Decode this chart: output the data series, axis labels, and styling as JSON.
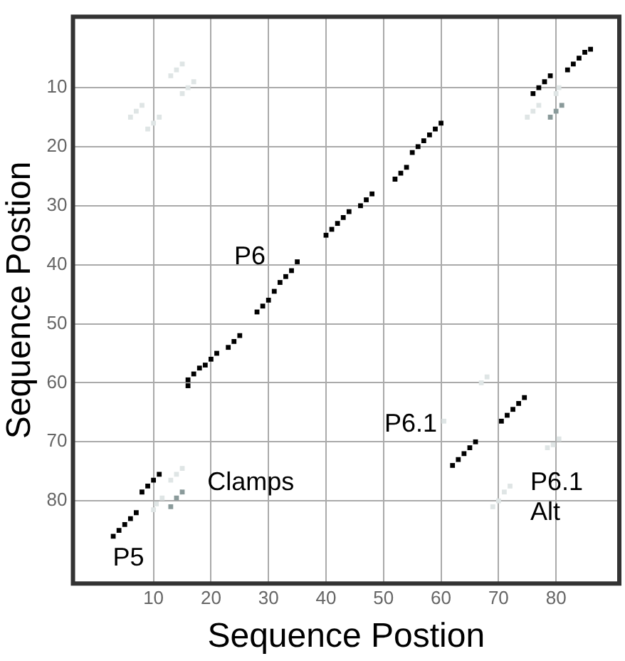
{
  "chart_data": {
    "type": "scatter",
    "xlabel": "Sequence Postion",
    "ylabel": "Sequence Postion",
    "xlim": [
      -4,
      91
    ],
    "ylim": [
      94,
      -2
    ],
    "xticks": [
      10,
      20,
      30,
      40,
      50,
      60,
      70,
      80
    ],
    "yticks": [
      10,
      20,
      30,
      40,
      50,
      60,
      70,
      80
    ],
    "grid": true,
    "marker": "square",
    "legend": false,
    "series": [
      {
        "color": "#dfe5e5",
        "x": [
          80.5,
          80,
          77,
          76,
          75,
          17,
          16,
          15,
          15,
          14,
          13,
          11,
          10,
          9,
          8,
          7,
          6,
          15,
          14,
          13,
          11.5,
          10.5,
          10,
          68,
          67,
          60.5,
          80.5,
          79.5,
          78.5,
          72,
          71,
          70,
          69
        ],
        "values": [
          10,
          11,
          13,
          14,
          15,
          9,
          10,
          11,
          6,
          7,
          8,
          15,
          16,
          17,
          13,
          14,
          15,
          74.5,
          75.5,
          76.5,
          79.5,
          80.5,
          81.5,
          59,
          60,
          66.5,
          69.5,
          70.5,
          71,
          77.5,
          78.5,
          80,
          81
        ]
      },
      {
        "color": "#8a9a9a",
        "x": [
          81,
          80,
          79,
          15,
          14,
          13
        ],
        "values": [
          13,
          14,
          15,
          78.5,
          79.5,
          81
        ]
      },
      {
        "color": "#000000",
        "x": [
          82,
          83,
          84,
          85,
          86,
          76,
          77,
          78,
          79,
          40,
          41,
          42,
          43,
          44,
          46,
          47,
          48,
          52,
          53,
          54,
          55,
          56,
          57,
          58,
          59,
          60,
          35,
          34,
          33,
          32,
          31,
          30,
          29,
          28,
          25,
          24,
          23,
          21,
          20,
          19,
          18,
          17,
          16,
          16,
          74.5,
          73.5,
          72.5,
          71.5,
          70.5,
          66,
          65,
          64,
          63,
          62,
          11,
          10,
          9,
          8,
          7,
          6,
          5,
          4,
          3
        ],
        "values": [
          7,
          6,
          5,
          4,
          3.5,
          11,
          10,
          9,
          8,
          35,
          34,
          33,
          32,
          31,
          30,
          29,
          28,
          25.5,
          24.5,
          23.5,
          21,
          20,
          19,
          18,
          17,
          16,
          39.5,
          41,
          42,
          43,
          44.5,
          46,
          47,
          48,
          52,
          53,
          54,
          55,
          56,
          57,
          57.5,
          58.5,
          59.5,
          60.5,
          62.5,
          63.5,
          64.5,
          65.5,
          66.5,
          70,
          71,
          72,
          73,
          74,
          75.5,
          76.5,
          77.5,
          78.5,
          82,
          83,
          84,
          85,
          86
        ]
      }
    ],
    "annotations": [
      "P6",
      "P6.1",
      "Clamps",
      "P6.1\nAlt",
      "P5"
    ]
  }
}
